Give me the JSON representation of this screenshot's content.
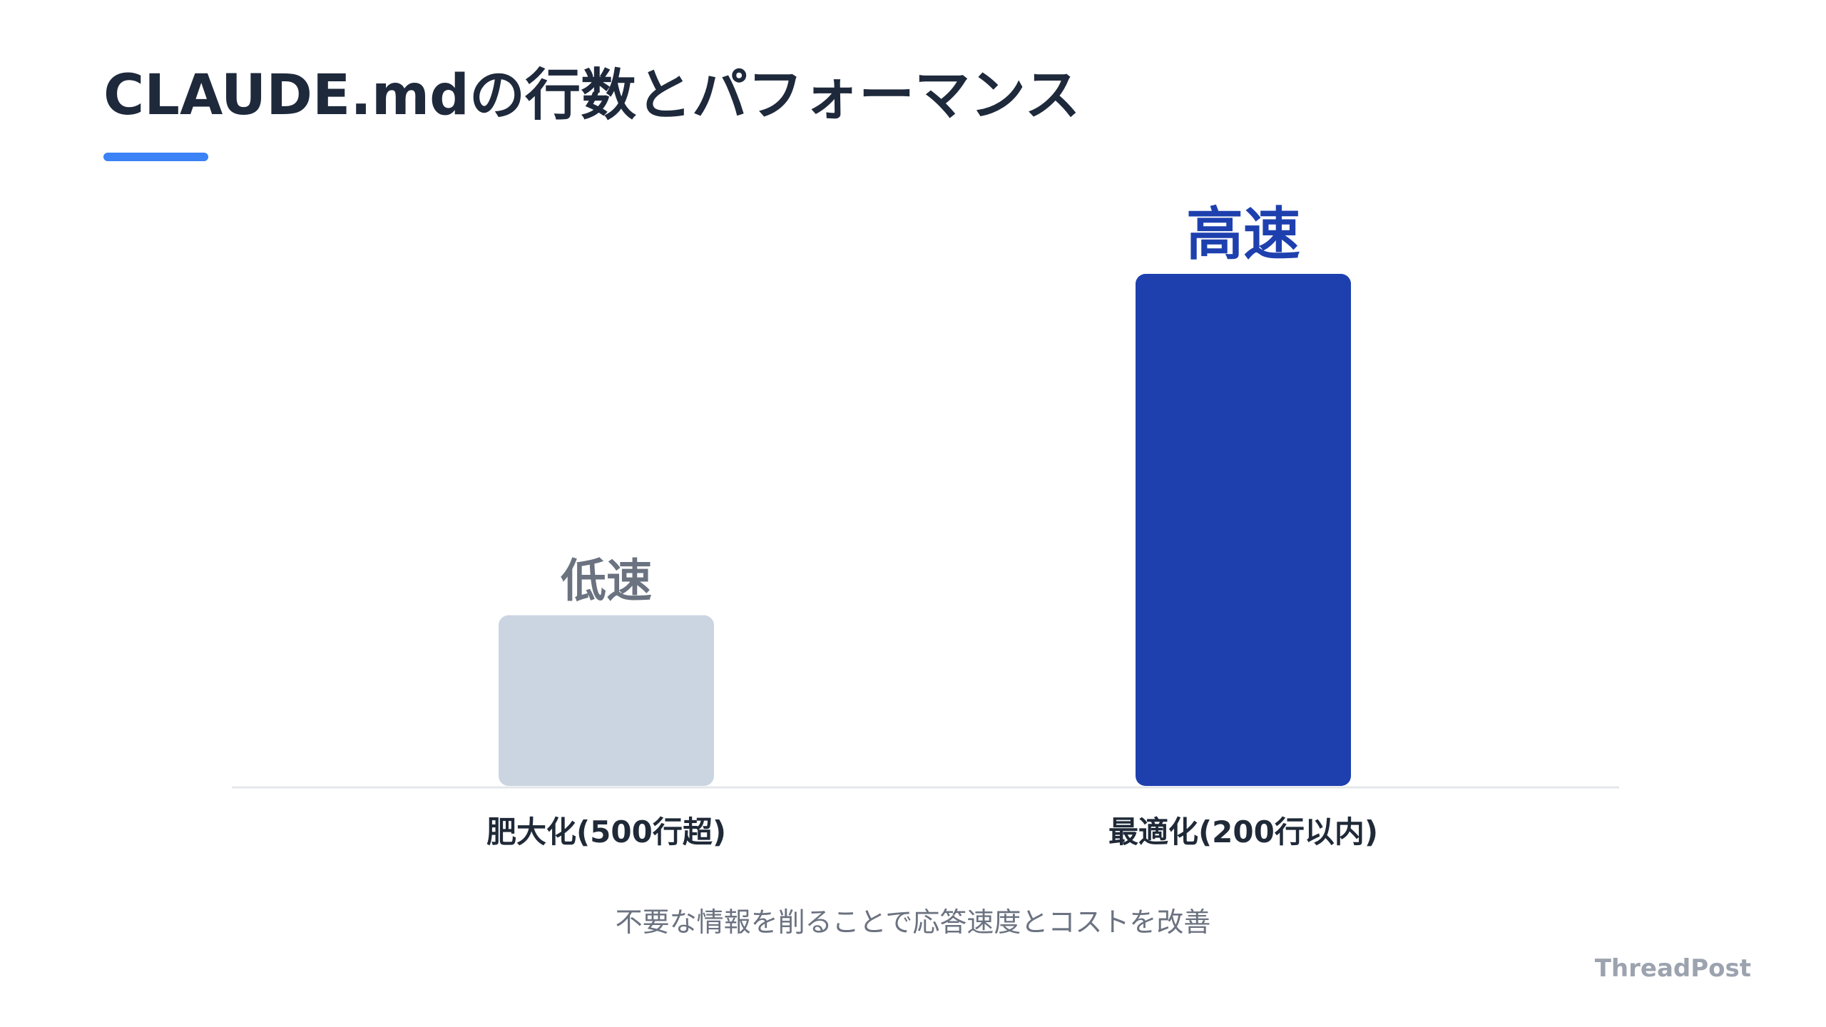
{
  "header": {
    "title": "CLAUDE.mdの行数とパフォーマンス"
  },
  "chart_data": {
    "type": "bar",
    "categories": [
      "肥大化(500行超)",
      "最適化(200行以内)"
    ],
    "values": [
      1,
      3
    ],
    "value_labels": [
      "低速",
      "高速"
    ],
    "bar_colors": [
      "#cbd5e1",
      "#1e40af"
    ],
    "value_label_colors": [
      "#6b7280",
      "#1e40af"
    ],
    "title": "",
    "xlabel": "",
    "ylabel": "",
    "grid": false,
    "legend": "none"
  },
  "caption": "不要な情報を削ることで応答速度とコストを改善",
  "brand": "ThreadPost",
  "colors": {
    "accent": "#3b82f6",
    "title_text": "#1e293b",
    "baseline": "#e5e7eb",
    "category_text": "#1f2937",
    "caption_text": "#6b7280",
    "brand_text": "#9ca3af"
  }
}
